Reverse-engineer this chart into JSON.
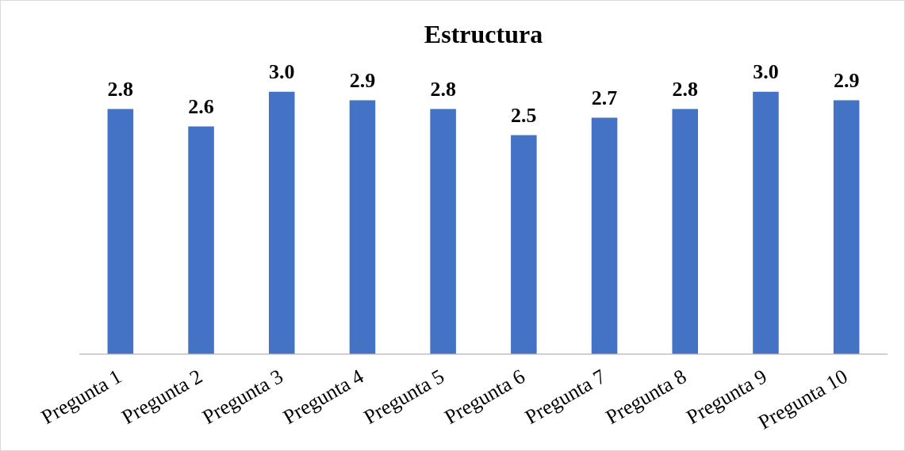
{
  "chart_data": {
    "type": "bar",
    "title": "Estructura",
    "categories": [
      "Pregunta 1",
      "Pregunta 2",
      "Pregunta 3",
      "Pregunta 4",
      "Pregunta 5",
      "Pregunta 6",
      "Pregunta 7",
      "Pregunta 8",
      "Pregunta 9",
      "Pregunta 10"
    ],
    "values": [
      2.8,
      2.6,
      3.0,
      2.9,
      2.8,
      2.5,
      2.7,
      2.8,
      3.0,
      2.9
    ],
    "value_labels": [
      "2.8",
      "2.6",
      "3.0",
      "2.9",
      "2.8",
      "2.5",
      "2.7",
      "2.8",
      "3.0",
      "2.9"
    ],
    "color": "#4472c4",
    "grid": false,
    "legend": false,
    "tick_labels": "x"
  }
}
